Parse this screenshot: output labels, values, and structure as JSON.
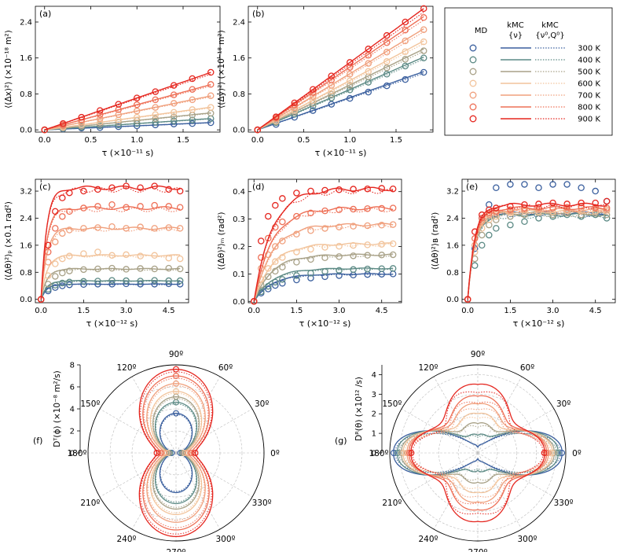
{
  "colors": {
    "300 K": "#3a5f9e",
    "400 K": "#5c8a85",
    "500 K": "#a8a187",
    "600 K": "#f2c49c",
    "700 K": "#f0a07d",
    "800 K": "#ee7057",
    "900 K": "#e5261f"
  },
  "legend": {
    "col_md": "MD",
    "col_kmc": "kMC",
    "col_kmc_sub": "{ν}",
    "col_kmc2": "kMC",
    "col_kmc2_sub": "{ν⁰,Q⁰}",
    "temperatures": [
      "300 K",
      "400 K",
      "500 K",
      "600 K",
      "700 K",
      "800 K",
      "900 K"
    ]
  },
  "chart_data": [
    {
      "id": "a",
      "panel_label": "(a)",
      "type": "line",
      "xlabel": "τ (×10⁻¹¹ s)",
      "ylabel": "⟨(Δx)²⟩ (×10⁻¹⁸ m²)",
      "xlim": [
        -0.1,
        1.9
      ],
      "ylim": [
        -0.05,
        2.75
      ],
      "xticks": [
        0.0,
        0.5,
        1.0,
        1.5
      ],
      "xtick_labels": [
        "0.0",
        "0.5",
        "1.0",
        "1.5"
      ],
      "yticks": [
        0.0,
        0.8,
        1.6,
        2.4
      ],
      "ytick_labels": [
        "0.0",
        "0.8",
        "1.6",
        "2.4"
      ],
      "x": [
        0,
        0.2,
        0.4,
        0.6,
        0.8,
        1.0,
        1.2,
        1.4,
        1.6,
        1.8
      ],
      "slopes": [
        0.09,
        0.14,
        0.21,
        0.28,
        0.42,
        0.56,
        0.71
      ],
      "series": [
        {
          "name": "300 K",
          "values": [
            0.0,
            0.02,
            0.04,
            0.05,
            0.07,
            0.09,
            0.11,
            0.13,
            0.14,
            0.16
          ]
        },
        {
          "name": "400 K",
          "values": [
            0.0,
            0.03,
            0.06,
            0.09,
            0.11,
            0.14,
            0.17,
            0.2,
            0.22,
            0.25
          ]
        },
        {
          "name": "500 K",
          "values": [
            0.0,
            0.04,
            0.08,
            0.13,
            0.17,
            0.21,
            0.25,
            0.29,
            0.33,
            0.37
          ]
        },
        {
          "name": "600 K",
          "values": [
            0.0,
            0.06,
            0.11,
            0.17,
            0.22,
            0.28,
            0.34,
            0.39,
            0.45,
            0.5
          ]
        },
        {
          "name": "700 K",
          "values": [
            0.0,
            0.08,
            0.17,
            0.25,
            0.34,
            0.42,
            0.5,
            0.59,
            0.67,
            0.76
          ]
        },
        {
          "name": "800 K",
          "values": [
            0.0,
            0.11,
            0.22,
            0.34,
            0.45,
            0.56,
            0.67,
            0.78,
            0.9,
            1.01
          ]
        },
        {
          "name": "900 K",
          "values": [
            0.0,
            0.14,
            0.28,
            0.43,
            0.57,
            0.71,
            0.85,
            0.99,
            1.14,
            1.28
          ]
        }
      ]
    },
    {
      "id": "b",
      "panel_label": "(b)",
      "type": "line",
      "xlabel": "τ (×10⁻¹¹ s)",
      "ylabel": "⟨(Δy)²⟩ (×10⁻¹⁸ m²)",
      "xlim": [
        -0.1,
        1.9
      ],
      "ylim": [
        -0.05,
        2.75
      ],
      "xticks": [
        0.0,
        0.5,
        1.0,
        1.5
      ],
      "xtick_labels": [
        "0.0",
        "0.5",
        "1.0",
        "1.5"
      ],
      "yticks": [
        0.0,
        0.8,
        1.6,
        2.4
      ],
      "ytick_labels": [
        "0.0",
        "0.8",
        "1.6",
        "2.4"
      ],
      "x": [
        0,
        0.2,
        0.4,
        0.6,
        0.8,
        1.0,
        1.2,
        1.4,
        1.6,
        1.8
      ],
      "slopes": [
        0.72,
        0.9,
        1.0,
        1.1,
        1.25,
        1.4,
        1.5
      ],
      "series": [
        {
          "name": "300 K",
          "values": [
            0.0,
            0.12,
            0.28,
            0.43,
            0.57,
            0.7,
            0.84,
            0.98,
            1.12,
            1.28
          ]
        },
        {
          "name": "400 K",
          "values": [
            0.0,
            0.16,
            0.35,
            0.53,
            0.71,
            0.89,
            1.06,
            1.24,
            1.42,
            1.6
          ]
        },
        {
          "name": "500 K",
          "values": [
            0.0,
            0.18,
            0.39,
            0.59,
            0.79,
            0.99,
            1.18,
            1.38,
            1.57,
            1.76
          ]
        },
        {
          "name": "600 K",
          "values": [
            0.0,
            0.2,
            0.43,
            0.65,
            0.87,
            1.09,
            1.3,
            1.52,
            1.74,
            1.96
          ]
        },
        {
          "name": "700 K",
          "values": [
            0.0,
            0.24,
            0.49,
            0.74,
            0.99,
            1.24,
            1.48,
            1.73,
            1.98,
            2.23
          ]
        },
        {
          "name": "800 K",
          "values": [
            0.0,
            0.27,
            0.55,
            0.83,
            1.11,
            1.39,
            1.66,
            1.94,
            2.22,
            2.5
          ]
        },
        {
          "name": "900 K",
          "values": [
            0.0,
            0.29,
            0.6,
            0.9,
            1.2,
            1.5,
            1.8,
            2.1,
            2.4,
            2.7
          ]
        }
      ]
    },
    {
      "id": "c",
      "panel_label": "(c)",
      "type": "line",
      "xlabel": "τ (×10⁻¹² s)",
      "ylabel": "⟨(Δθ)²⟩ₚ (×0.1 rad²)",
      "xlim": [
        -0.2,
        5.2
      ],
      "ylim": [
        -0.1,
        3.55
      ],
      "xticks": [
        0.0,
        1.5,
        3.0,
        4.5
      ],
      "xtick_labels": [
        "0.0",
        "1.5",
        "3.0",
        "4.5"
      ],
      "yticks": [
        0.0,
        0.8,
        1.6,
        2.4,
        3.2
      ],
      "ytick_labels": [
        "0.0",
        "0.8",
        "1.6",
        "2.4",
        "3.2"
      ],
      "x": [
        0,
        0.25,
        0.5,
        0.75,
        1.0,
        1.5,
        2.0,
        2.5,
        3.0,
        3.5,
        4.0,
        4.5,
        4.9
      ],
      "plateaus": [
        0.45,
        0.55,
        0.9,
        1.3,
        2.1,
        2.7,
        3.3
      ],
      "rate": 5,
      "series": [
        {
          "name": "300 K",
          "values": [
            0.0,
            0.25,
            0.35,
            0.4,
            0.43,
            0.44,
            0.45,
            0.45,
            0.46,
            0.45,
            0.45,
            0.46,
            0.45
          ]
        },
        {
          "name": "400 K",
          "values": [
            0.0,
            0.3,
            0.42,
            0.48,
            0.51,
            0.53,
            0.54,
            0.56,
            0.55,
            0.54,
            0.56,
            0.55,
            0.55
          ]
        },
        {
          "name": "500 K",
          "values": [
            0.0,
            0.45,
            0.68,
            0.78,
            0.84,
            0.88,
            0.9,
            0.92,
            0.89,
            0.91,
            0.9,
            0.92,
            0.9
          ]
        },
        {
          "name": "600 K",
          "values": [
            0.0,
            0.7,
            1.05,
            1.2,
            1.28,
            1.35,
            1.4,
            1.3,
            1.32,
            1.28,
            1.3,
            1.22,
            1.2
          ]
        },
        {
          "name": "700 K",
          "values": [
            0.0,
            1.1,
            1.7,
            1.95,
            2.05,
            2.1,
            2.12,
            2.15,
            2.1,
            2.14,
            2.1,
            2.12,
            2.1
          ]
        },
        {
          "name": "800 K",
          "values": [
            0.0,
            1.4,
            2.1,
            2.45,
            2.6,
            2.7,
            2.75,
            2.8,
            2.72,
            2.75,
            2.78,
            2.75,
            2.72
          ]
        },
        {
          "name": "900 K",
          "values": [
            0.0,
            1.6,
            2.6,
            3.0,
            3.15,
            3.2,
            3.25,
            3.3,
            3.35,
            3.3,
            3.35,
            3.25,
            3.2
          ]
        }
      ]
    },
    {
      "id": "d",
      "panel_label": "(d)",
      "type": "line",
      "xlabel": "τ (×10⁻¹² s)",
      "ylabel": "⟨(Δθ)²⟩ₘ (rad²)",
      "xlim": [
        -0.2,
        5.2
      ],
      "ylim": [
        -0.005,
        0.445
      ],
      "xticks": [
        0.0,
        1.5,
        3.0,
        4.5
      ],
      "xtick_labels": [
        "0.0",
        "1.5",
        "3.0",
        "4.5"
      ],
      "yticks": [
        0.0,
        0.1,
        0.2,
        0.3,
        0.4
      ],
      "ytick_labels": [
        "0.0",
        "0.1",
        "0.2",
        "0.3",
        "0.4"
      ],
      "x": [
        0,
        0.25,
        0.5,
        0.75,
        1.0,
        1.5,
        2.0,
        2.5,
        3.0,
        3.5,
        4.0,
        4.5,
        4.9
      ],
      "plateaus": [
        0.1,
        0.12,
        0.17,
        0.21,
        0.28,
        0.34,
        0.41
      ],
      "rate": 1.6,
      "series": [
        {
          "name": "300 K",
          "values": [
            0.0,
            0.03,
            0.045,
            0.058,
            0.066,
            0.078,
            0.085,
            0.09,
            0.094,
            0.096,
            0.098,
            0.099,
            0.1
          ]
        },
        {
          "name": "400 K",
          "values": [
            0.0,
            0.035,
            0.055,
            0.07,
            0.08,
            0.094,
            0.103,
            0.109,
            0.113,
            0.116,
            0.118,
            0.119,
            0.12
          ]
        },
        {
          "name": "500 K",
          "values": [
            0.0,
            0.06,
            0.09,
            0.11,
            0.125,
            0.143,
            0.153,
            0.159,
            0.163,
            0.166,
            0.168,
            0.169,
            0.17
          ]
        },
        {
          "name": "600 K",
          "values": [
            0.0,
            0.08,
            0.12,
            0.145,
            0.16,
            0.18,
            0.19,
            0.197,
            0.201,
            0.204,
            0.206,
            0.208,
            0.21
          ]
        },
        {
          "name": "700 K",
          "values": [
            0.0,
            0.12,
            0.17,
            0.2,
            0.22,
            0.245,
            0.258,
            0.266,
            0.271,
            0.274,
            0.276,
            0.278,
            0.28
          ]
        },
        {
          "name": "800 K",
          "values": [
            0.0,
            0.16,
            0.23,
            0.27,
            0.29,
            0.31,
            0.322,
            0.33,
            0.334,
            0.336,
            0.338,
            0.339,
            0.34
          ]
        },
        {
          "name": "900 K",
          "values": [
            0.0,
            0.22,
            0.31,
            0.35,
            0.375,
            0.395,
            0.402,
            0.405,
            0.407,
            0.409,
            0.41,
            0.412,
            0.41
          ]
        }
      ]
    },
    {
      "id": "e",
      "panel_label": "(e)",
      "type": "line",
      "xlabel": "τ (×10⁻¹² s)",
      "ylabel": "⟨(Δθ)²⟩ʙ (rad²)",
      "xlim": [
        -0.2,
        5.2
      ],
      "ylim": [
        -0.1,
        3.55
      ],
      "xticks": [
        0.0,
        1.5,
        3.0,
        4.5
      ],
      "xtick_labels": [
        "0.0",
        "1.5",
        "3.0",
        "4.5"
      ],
      "yticks": [
        0.0,
        0.8,
        1.6,
        2.4,
        3.2
      ],
      "ytick_labels": [
        "0.0",
        "0.8",
        "1.6",
        "2.4",
        "3.2"
      ],
      "x": [
        0,
        0.25,
        0.5,
        0.75,
        1.0,
        1.5,
        2.0,
        2.5,
        3.0,
        3.5,
        4.0,
        4.5,
        4.9
      ],
      "plateaus": [
        2.55,
        2.5,
        2.55,
        2.6,
        2.65,
        2.7,
        2.8
      ],
      "rate": 4,
      "series": [
        {
          "name": "300 K",
          "values": [
            0.0,
            1.5,
            2.4,
            2.8,
            3.3,
            3.4,
            3.4,
            3.3,
            3.4,
            3.4,
            3.3,
            3.2,
            2.9
          ]
        },
        {
          "name": "400 K",
          "values": [
            0.0,
            1.0,
            1.6,
            1.9,
            2.1,
            2.2,
            2.3,
            2.4,
            2.45,
            2.5,
            2.45,
            2.5,
            2.4
          ]
        },
        {
          "name": "500 K",
          "values": [
            0.0,
            1.2,
            1.9,
            2.2,
            2.35,
            2.45,
            2.5,
            2.55,
            2.5,
            2.55,
            2.5,
            2.55,
            2.5
          ]
        },
        {
          "name": "600 K",
          "values": [
            0.0,
            1.4,
            2.1,
            2.35,
            2.45,
            2.55,
            2.6,
            2.6,
            2.58,
            2.62,
            2.6,
            2.6,
            2.6
          ]
        },
        {
          "name": "700 K",
          "values": [
            0.0,
            1.6,
            2.3,
            2.5,
            2.55,
            2.6,
            2.65,
            2.65,
            2.7,
            2.65,
            2.7,
            2.68,
            2.65
          ]
        },
        {
          "name": "800 K",
          "values": [
            0.0,
            1.8,
            2.4,
            2.55,
            2.6,
            2.65,
            2.7,
            2.72,
            2.7,
            2.72,
            2.75,
            2.72,
            2.7
          ]
        },
        {
          "name": "900 K",
          "values": [
            0.0,
            2.0,
            2.5,
            2.65,
            2.7,
            2.75,
            2.8,
            2.82,
            2.85,
            2.82,
            2.85,
            2.85,
            2.9
          ]
        }
      ]
    },
    {
      "id": "f",
      "panel_label": "(f)",
      "type": "polar",
      "rlabel": "Dᵀ(ϕ) (×10⁻⁸ m²/s)",
      "rmax": 8,
      "rticks": [
        0,
        2,
        4,
        6,
        8
      ],
      "rtick_labels": [
        "0",
        "2",
        "4",
        "6",
        "8"
      ],
      "angle_labels": [
        "0º",
        "30º",
        "60º",
        "90º",
        "120º",
        "150º",
        "180º",
        "210º",
        "240º",
        "270º",
        "300º",
        "330º"
      ],
      "series": [
        {
          "name": "300 K",
          "d_x": 0.4,
          "d_y": 3.6
        },
        {
          "name": "400 K",
          "d_x": 0.55,
          "d_y": 4.6
        },
        {
          "name": "500 K",
          "d_x": 0.65,
          "d_y": 5.1
        },
        {
          "name": "600 K",
          "d_x": 0.8,
          "d_y": 5.6
        },
        {
          "name": "700 K",
          "d_x": 1.05,
          "d_y": 6.3
        },
        {
          "name": "800 K",
          "d_x": 1.4,
          "d_y": 7.0
        },
        {
          "name": "900 K",
          "d_x": 1.75,
          "d_y": 7.6
        }
      ]
    },
    {
      "id": "g",
      "panel_label": "(g)",
      "type": "polar",
      "rlabel": "Dᴿ(θ) (×10¹² /s)",
      "rmax": 4.5,
      "rticks": [
        0,
        1,
        2,
        3,
        4
      ],
      "rtick_labels": [
        "0",
        "1",
        "2",
        "3",
        "4"
      ],
      "angle_labels": [
        "0º",
        "30º",
        "60º",
        "90º",
        "120º",
        "150º",
        "180º",
        "210º",
        "240º",
        "270º",
        "300º",
        "330º"
      ],
      "series": [
        {
          "name": "300 K",
          "d_0": 4.3,
          "d_90": 0.3
        },
        {
          "name": "400 K",
          "d_0": 4.1,
          "d_90": 0.9
        },
        {
          "name": "500 K",
          "d_0": 3.9,
          "d_90": 1.5
        },
        {
          "name": "600 K",
          "d_0": 3.8,
          "d_90": 2.0
        },
        {
          "name": "700 K",
          "d_0": 3.6,
          "d_90": 2.5
        },
        {
          "name": "800 K",
          "d_0": 3.5,
          "d_90": 2.9
        },
        {
          "name": "900 K",
          "d_0": 3.4,
          "d_90": 3.5
        }
      ]
    }
  ]
}
